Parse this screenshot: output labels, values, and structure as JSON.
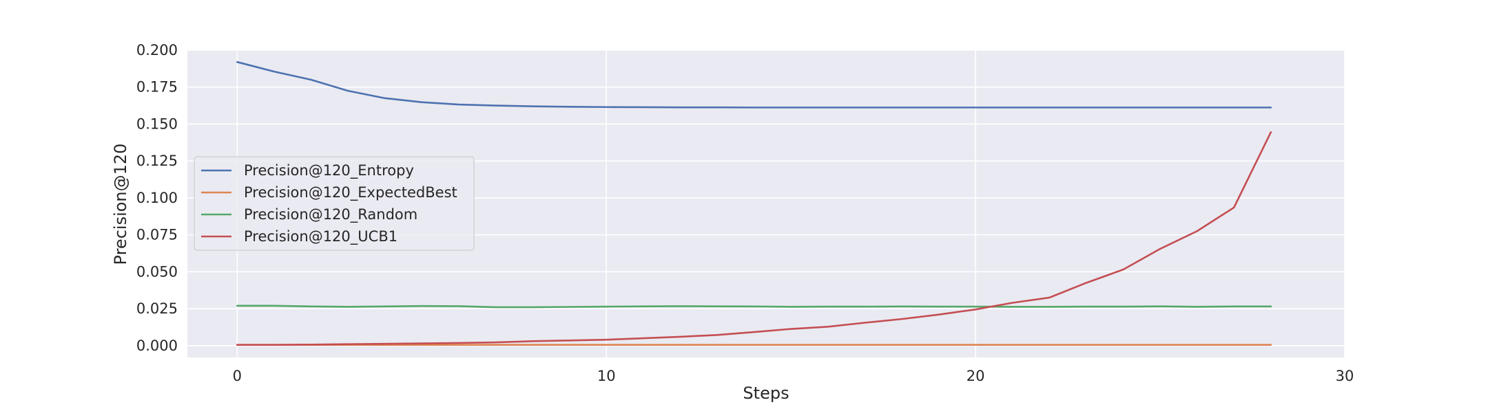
{
  "chart_data": {
    "type": "line",
    "title": "",
    "xlabel": "Steps",
    "ylabel": "Precision@120",
    "xlim": [
      -1.35,
      30
    ],
    "ylim": [
      -0.008,
      0.2
    ],
    "x_ticks": [
      0,
      10,
      20,
      30
    ],
    "x_tick_labels": [
      "0",
      "10",
      "20",
      "30"
    ],
    "y_ticks": [
      0.0,
      0.025,
      0.05,
      0.075,
      0.1,
      0.125,
      0.15,
      0.175,
      0.2
    ],
    "y_tick_labels": [
      "0.000",
      "0.025",
      "0.050",
      "0.075",
      "0.100",
      "0.125",
      "0.150",
      "0.175",
      "0.200"
    ],
    "grid": true,
    "legend_position": "center-left",
    "x": [
      0,
      1,
      2,
      3,
      4,
      5,
      6,
      7,
      8,
      9,
      10,
      11,
      12,
      13,
      14,
      15,
      16,
      17,
      18,
      19,
      20,
      21,
      22,
      23,
      24,
      25,
      26,
      27,
      28
    ],
    "series": [
      {
        "name": "Precision@120_Entropy",
        "color": "#4c72b0",
        "values": [
          0.192,
          0.1855,
          0.18,
          0.1725,
          0.1675,
          0.1648,
          0.1632,
          0.1625,
          0.162,
          0.1617,
          0.1615,
          0.1614,
          0.1613,
          0.1613,
          0.1612,
          0.1612,
          0.1612,
          0.1612,
          0.1612,
          0.1612,
          0.1612,
          0.1612,
          0.1612,
          0.1612,
          0.1612,
          0.1612,
          0.1612,
          0.1612,
          0.1612
        ]
      },
      {
        "name": "Precision@120_ExpectedBest",
        "color": "#dd8452",
        "values": [
          0.0005,
          0.0005,
          0.0005,
          0.0005,
          0.0005,
          0.0005,
          0.0005,
          0.0005,
          0.0005,
          0.0005,
          0.0005,
          0.0005,
          0.0005,
          0.0005,
          0.0005,
          0.0005,
          0.0005,
          0.0005,
          0.0005,
          0.0005,
          0.0005,
          0.0005,
          0.0005,
          0.0005,
          0.0005,
          0.0005,
          0.0005,
          0.0005,
          0.0005
        ]
      },
      {
        "name": "Precision@120_Random",
        "color": "#55a868",
        "values": [
          0.027,
          0.027,
          0.0265,
          0.0263,
          0.0265,
          0.0268,
          0.0267,
          0.026,
          0.026,
          0.0262,
          0.0264,
          0.0266,
          0.0267,
          0.0266,
          0.0265,
          0.0263,
          0.0264,
          0.0264,
          0.0265,
          0.0264,
          0.0264,
          0.0263,
          0.0263,
          0.0264,
          0.0264,
          0.0266,
          0.0263,
          0.0265,
          0.0265
        ]
      },
      {
        "name": "Precision@120_UCB1",
        "color": "#c44e52",
        "values": [
          0.0005,
          0.0005,
          0.0007,
          0.001,
          0.0012,
          0.0015,
          0.0018,
          0.0022,
          0.003,
          0.0035,
          0.004,
          0.005,
          0.006,
          0.0072,
          0.0092,
          0.0113,
          0.0128,
          0.0155,
          0.018,
          0.021,
          0.0245,
          0.029,
          0.0325,
          0.0425,
          0.0515,
          0.0655,
          0.0775,
          0.0935,
          0.1445
        ]
      }
    ]
  }
}
